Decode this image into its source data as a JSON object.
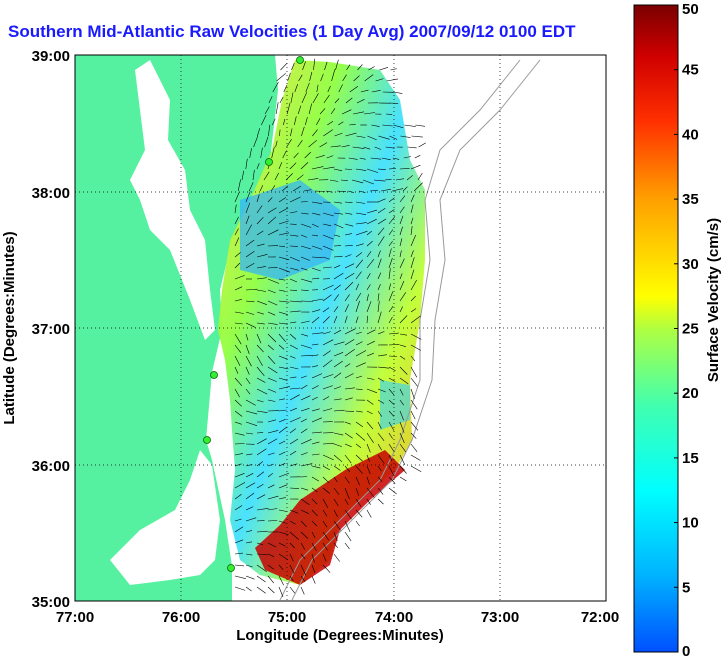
{
  "title": "Southern Mid-Atlantic Raw Velocities (1 Day Avg) 2007/09/12 0100 EDT",
  "axes": {
    "xlabel": "Longitude (Degrees:Minutes)",
    "ylabel": "Latitude (Degrees:Minutes)",
    "xticks": [
      "77:00",
      "76:00",
      "75:00",
      "74:00",
      "73:00",
      "72:00"
    ],
    "yticks": [
      "39:00",
      "38:00",
      "37:00",
      "36:00",
      "35:00"
    ]
  },
  "colorbar": {
    "label": "Surface Velocity (cm/s)",
    "ticks": [
      "50",
      "45",
      "40",
      "35",
      "30",
      "25",
      "20",
      "15",
      "10",
      "5",
      "0"
    ],
    "range": [
      0,
      50
    ]
  },
  "colors": {
    "land": "#55f0a0",
    "title": "#1a1aff",
    "station": "#33ee33"
  }
}
